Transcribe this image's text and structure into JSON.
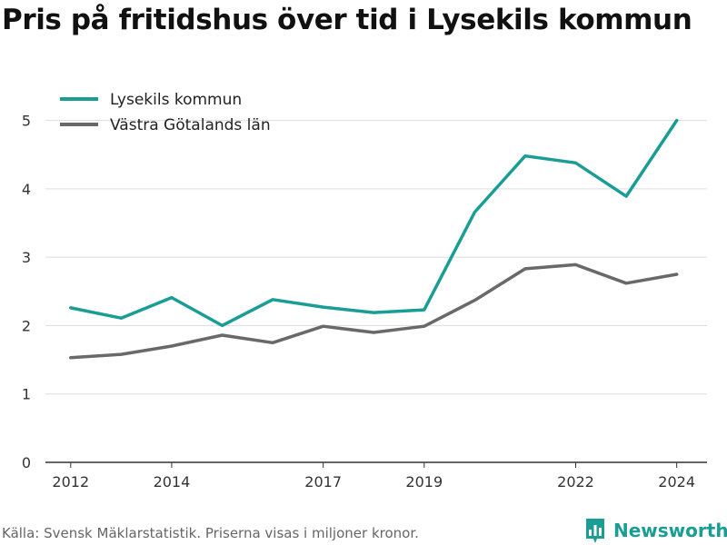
{
  "title": "Pris på fritidshus över tid i Lysekils kommun",
  "footer": {
    "source": "Källa: Svensk Mäklarstatistik. Priserna visas i miljoner kronor.",
    "brand": "Newsworthy"
  },
  "colors": {
    "lysekil": "#1a9d94",
    "vg": "#696969",
    "grid": "#dddddd",
    "axis": "#333333",
    "brand": "#1a9d94"
  },
  "icons": {
    "brand": "bar-chart-logo-icon"
  },
  "chart_data": {
    "type": "line",
    "x": [
      2012,
      2013,
      2014,
      2015,
      2016,
      2017,
      2018,
      2019,
      2020,
      2021,
      2022,
      2023,
      2024
    ],
    "x_ticks": [
      2012,
      2014,
      2017,
      2019,
      2022,
      2024
    ],
    "y_ticks": [
      0,
      1,
      2,
      3,
      4,
      5
    ],
    "xlim": [
      2011.5,
      2024.6
    ],
    "ylim": [
      0,
      5.3
    ],
    "grid": true,
    "legend": "top-left",
    "series": [
      {
        "name": "Lysekils kommun",
        "color": "#1a9d94",
        "values": [
          2.26,
          2.11,
          2.41,
          2.0,
          2.38,
          2.27,
          2.19,
          2.23,
          3.66,
          4.48,
          4.38,
          3.89,
          5.0
        ]
      },
      {
        "name": "Västra Götalands län",
        "color": "#696969",
        "values": [
          1.53,
          1.58,
          1.7,
          1.86,
          1.75,
          1.99,
          1.9,
          1.99,
          2.37,
          2.83,
          2.89,
          2.62,
          2.75
        ]
      }
    ]
  }
}
